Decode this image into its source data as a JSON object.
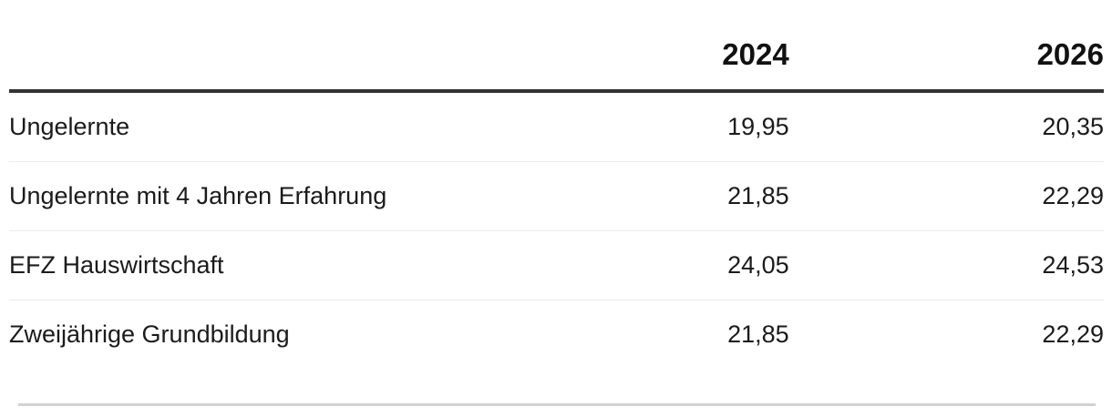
{
  "chart_data": {
    "type": "table",
    "columns": [
      "",
      "2024",
      "2026"
    ],
    "rows": [
      [
        "Ungelernte",
        "19,95",
        "20,35"
      ],
      [
        "Ungelernte mit 4 Jahren Erfahrung",
        "21,85",
        "22,29"
      ],
      [
        "EFZ Hauswirtschaft",
        "24,05",
        "24,53"
      ],
      [
        "Zweijährige Grundbildung",
        "21,85",
        "22,29"
      ]
    ],
    "layout": {
      "value_columns_alignment": "right",
      "label_column_alignment": "left"
    }
  },
  "colors": {
    "text": "#1b1b1b",
    "header_text": "#111111",
    "header_rule": "#333333",
    "row_separator": "#ebebeb",
    "bottom_rule": "#d2d2d2",
    "background": "#ffffff"
  }
}
